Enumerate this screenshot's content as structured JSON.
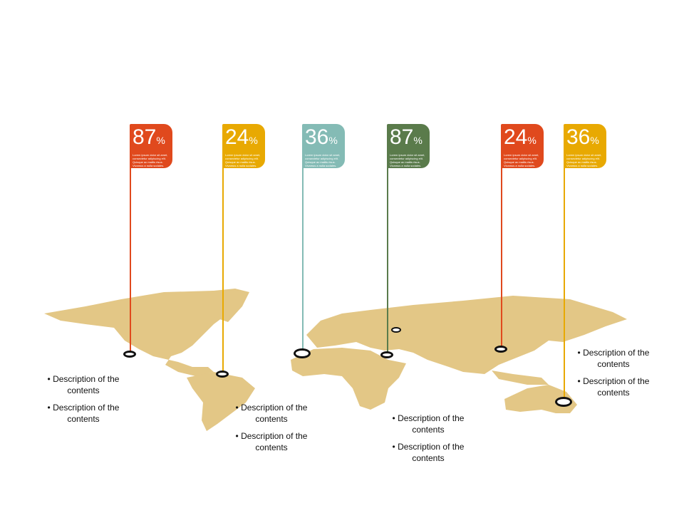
{
  "colors": {
    "map": "#e3c786",
    "red": "#e0491d",
    "yellow": "#e8a902",
    "teal": "#84bbb5",
    "green": "#5a7b4b"
  },
  "flags": [
    {
      "value": "87",
      "unit": "%",
      "text": "Lorem ipsum dolor sit amet, consectetur adipiscing elit. Quisque ac mattis risus. Vivamus a nulla sodales.",
      "color": "#e0491d"
    },
    {
      "value": "24",
      "unit": "%",
      "text": "Lorem ipsum dolor sit amet, consectetur adipiscing elit. Quisque ac mattis risus. Vivamus a nulla sodales.",
      "color": "#e8a902"
    },
    {
      "value": "36",
      "unit": "%",
      "text": "Lorem ipsum dolor sit amet, consectetur adipiscing elit. Quisque ac mattis risus. Vivamus a nulla sodales.",
      "color": "#84bbb5"
    },
    {
      "value": "87",
      "unit": "%",
      "text": "Lorem ipsum dolor sit amet, consectetur adipiscing elit. Quisque ac mattis risus. Vivamus a nulla sodales.",
      "color": "#5a7b4b"
    },
    {
      "value": "24",
      "unit": "%",
      "text": "Lorem ipsum dolor sit amet, consectetur adipiscing elit. Quisque ac mattis risus. Vivamus a nulla sodales.",
      "color": "#e0491d"
    },
    {
      "value": "36",
      "unit": "%",
      "text": "Lorem ipsum dolor sit amet, consectetur adipiscing elit. Quisque ac mattis risus. Vivamus a nulla sodales.",
      "color": "#e8a902"
    }
  ],
  "descriptions": [
    [
      "• Description of the contents",
      "• Description of the contents"
    ],
    [
      "• Description of the contents",
      "• Description of the contents"
    ],
    [
      "• Description of the contents",
      "• Description of the contents"
    ],
    [
      "• Description of the contents",
      "• Description of the contents"
    ]
  ]
}
